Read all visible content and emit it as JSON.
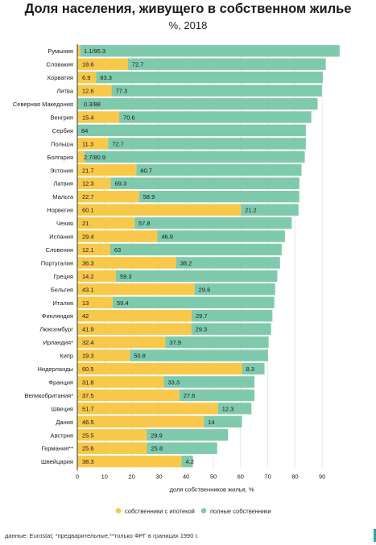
{
  "chart_data": {
    "type": "bar",
    "stacked": true,
    "orientation": "horizontal",
    "title": "Доля населения, живущего в собственном жилье",
    "subtitle": "%, 2018",
    "xlabel": "доля собственников жилья, %",
    "xlim": [
      0,
      100
    ],
    "xticks": [
      0,
      10,
      20,
      30,
      40,
      50,
      60,
      70,
      80,
      90
    ],
    "legend_position": "bottom",
    "colors": {
      "mortgage": "#f8c84a",
      "outright": "#7fcaad"
    },
    "categories": [
      "Румыния",
      "Словакия",
      "Хорватия",
      "Литва",
      "Северная Македония",
      "Венгрия",
      "Сербия",
      "Польша",
      "Болгария",
      "Эстония",
      "Латвия",
      "Мальта",
      "Норвегия",
      "Чехия",
      "Испания",
      "Словения",
      "Португалия",
      "Греция",
      "Бельгия",
      "Италия",
      "Финляндия",
      "Люксембург",
      "Ирландия*",
      "Кипр",
      "Нидерланды",
      "Франция",
      "Великобритания*",
      "Швеция",
      "Дания",
      "Австрия",
      "Германия**",
      "Швейцария"
    ],
    "series": [
      {
        "name": "собственники с ипотекой",
        "values": [
          1.1,
          18.6,
          6.9,
          12.6,
          0.3,
          15.4,
          0,
          11.3,
          2.7,
          21.7,
          12.3,
          22.7,
          60.1,
          21,
          29.4,
          12.1,
          36.3,
          14.2,
          43.1,
          13,
          42,
          41.9,
          32.4,
          19.3,
          60.5,
          31.8,
          37.5,
          51.7,
          46.5,
          25.5,
          25.6,
          38.3
        ]
      },
      {
        "name": "полные собственники",
        "values": [
          95.3,
          72.7,
          83.3,
          77.3,
          88,
          70.6,
          84,
          72.7,
          80.9,
          60.7,
          69.3,
          58.9,
          21.2,
          57.8,
          46.9,
          63,
          38.2,
          59.3,
          29.6,
          59.4,
          29.7,
          29.3,
          37.9,
          50.8,
          8.3,
          33.3,
          27.6,
          12.3,
          14,
          29.9,
          25.8,
          4.2
        ]
      }
    ],
    "combined_labels": {
      "Румыния": "1.1/95.3",
      "Северная Македония": "0.3/88",
      "Болгария": "2.7/80.9"
    },
    "hide_mortgage_label": [
      "Сербия"
    ]
  },
  "footer": {
    "source": "данные: Eurostat; *предварительные,**только ФРГ в границах 1990 г."
  }
}
